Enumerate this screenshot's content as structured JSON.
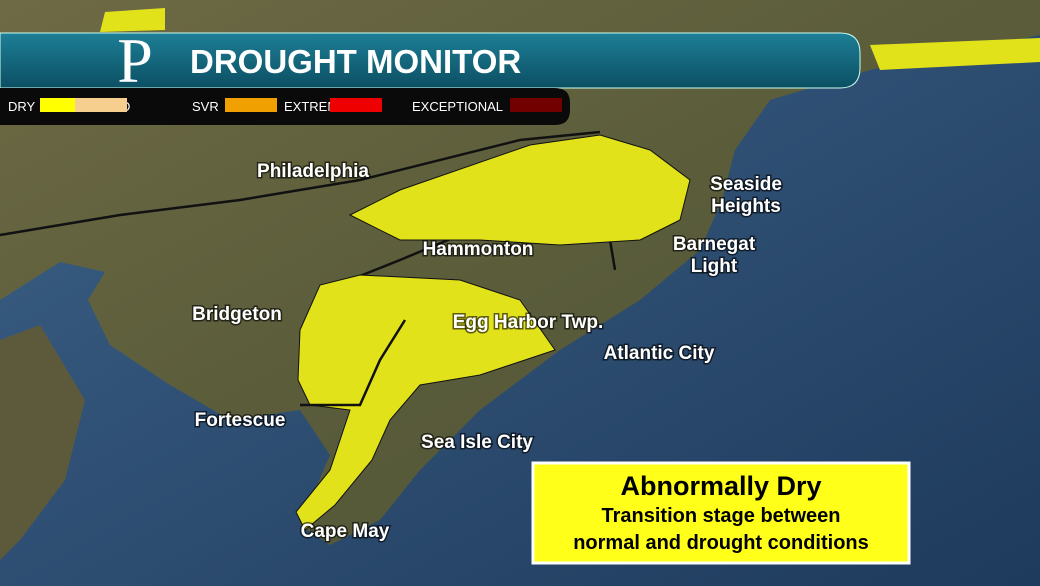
{
  "header": {
    "logo": "P",
    "title": "DROUGHT MONITOR"
  },
  "legend": [
    {
      "label": "DRY",
      "color": "#ffff00"
    },
    {
      "label": "MOD",
      "color": "#f6cf8e"
    },
    {
      "label": "SVR",
      "color": "#f0a000"
    },
    {
      "label": "EXTREME",
      "color": "#ee0000"
    },
    {
      "label": "EXCEPTIONAL",
      "color": "#730000"
    }
  ],
  "map": {
    "places": [
      [
        "Philadelphia"
      ],
      [
        "Seaside",
        "Heights"
      ],
      [
        "Hammonton"
      ],
      [
        "Barnegat",
        "Light"
      ],
      [
        "Bridgeton"
      ],
      [
        "Egg Harbor Twp."
      ],
      [
        "Atlantic City"
      ],
      [
        "Fortescue"
      ],
      [
        "Sea Isle City"
      ],
      [
        "Cape May"
      ]
    ]
  },
  "info": {
    "title": "Abnormally Dry",
    "lines": [
      "Transition stage between",
      "normal and drought conditions"
    ]
  }
}
